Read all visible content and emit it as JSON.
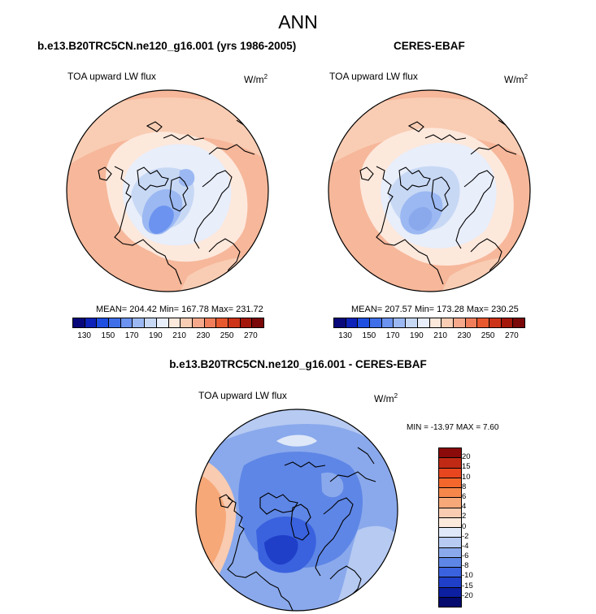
{
  "figure": {
    "main_title": "ANN"
  },
  "left_panel": {
    "title": "b.e13.B20TRC5CN.ne120_g16.001 (yrs 1986-2005)",
    "variable": "TOA upward LW flux",
    "units_base": "W/m",
    "units_exp": "2",
    "stats": "MEAN= 204.42  Min= 167.78  Max= 231.72"
  },
  "right_panel": {
    "title": "CERES-EBAF",
    "variable": "TOA upward LW flux",
    "units_base": "W/m",
    "units_exp": "2",
    "stats": "MEAN= 207.57  Min= 173.28  Max= 230.25"
  },
  "diff_panel": {
    "title": "b.e13.B20TRC5CN.ne120_g16.001 - CERES-EBAF",
    "variable": "TOA upward LW flux",
    "units_base": "W/m",
    "units_exp": "2",
    "minmax": "MIN = -13.97 MAX =   7.60"
  },
  "chart_data": [
    {
      "type": "heatmap",
      "projection": "north-polar-stereographic",
      "title": "b.e13.B20TRC5CN.ne120_g16.001 (yrs 1986-2005)",
      "variable": "TOA upward LW flux",
      "units": "W/m2",
      "mean": 204.42,
      "min": 167.78,
      "max": 231.72,
      "colorbar_ticks": [
        "130",
        "150",
        "170",
        "190",
        "210",
        "230",
        "250",
        "270"
      ],
      "colorbar_colors": [
        "#08087a",
        "#0c22b8",
        "#1f4fe0",
        "#3f6fe8",
        "#6b93ef",
        "#9bb8f2",
        "#c7d8f5",
        "#e8eefa",
        "#fde8dc",
        "#f9cdb4",
        "#f5a98a",
        "#f17e5b",
        "#e8582f",
        "#cc3318",
        "#a3180a",
        "#7a0808"
      ]
    },
    {
      "type": "heatmap",
      "projection": "north-polar-stereographic",
      "title": "CERES-EBAF",
      "variable": "TOA upward LW flux",
      "units": "W/m2",
      "mean": 207.57,
      "min": 173.28,
      "max": 230.25,
      "colorbar_ticks": [
        "130",
        "150",
        "170",
        "190",
        "210",
        "230",
        "250",
        "270"
      ],
      "colorbar_colors": [
        "#08087a",
        "#0c22b8",
        "#1f4fe0",
        "#3f6fe8",
        "#6b93ef",
        "#9bb8f2",
        "#c7d8f5",
        "#e8eefa",
        "#fde8dc",
        "#f9cdb4",
        "#f5a98a",
        "#f17e5b",
        "#e8582f",
        "#cc3318",
        "#a3180a",
        "#7a0808"
      ]
    },
    {
      "type": "heatmap",
      "projection": "north-polar-stereographic",
      "title": "b.e13.B20TRC5CN.ne120_g16.001 - CERES-EBAF",
      "variable": "TOA upward LW flux",
      "units": "W/m2",
      "min": -13.97,
      "max": 7.6,
      "colorbar_ticks": [
        "20",
        "15",
        "10",
        "8",
        "6",
        "4",
        "2",
        "0",
        "-2",
        "-4",
        "-6",
        "-8",
        "-10",
        "-15",
        "-20"
      ],
      "colorbar_colors": [
        "#8b0a0a",
        "#c02a14",
        "#e8461e",
        "#f3672c",
        "#f5874b",
        "#f7a878",
        "#f9cbb0",
        "#fbe9dc",
        "#dfe8f8",
        "#b6caf2",
        "#8aa9ec",
        "#5e86e6",
        "#3a62df",
        "#1f3fc8",
        "#0c1fa0",
        "#040a6e"
      ]
    }
  ]
}
